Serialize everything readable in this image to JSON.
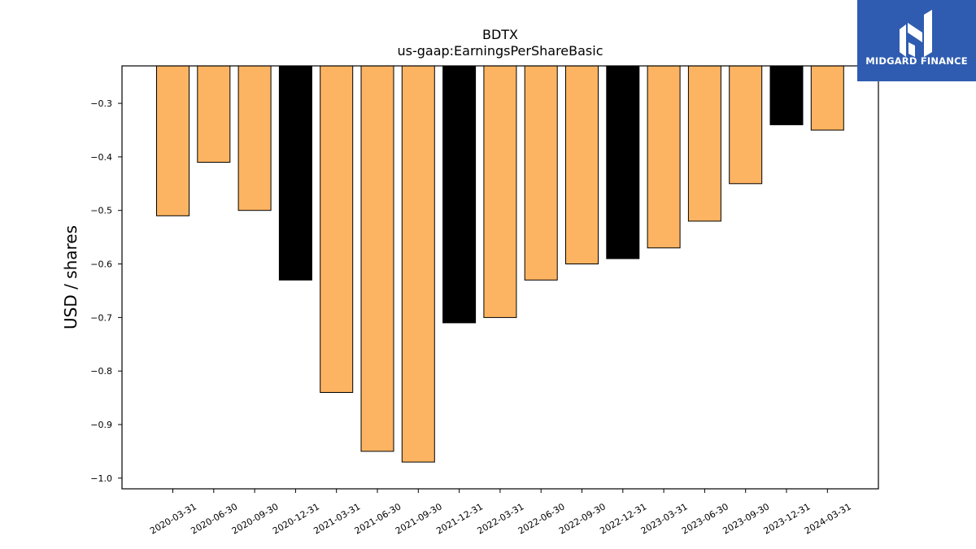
{
  "brand": {
    "name": "MIDGARD FINANCE",
    "logo_icon": "midgard-monogram-icon",
    "background": "#2f5cb0"
  },
  "chart_data": {
    "type": "bar",
    "title": "BDTX",
    "subtitle": "us-gaap:EarningsPerShareBasic",
    "xlabel": "",
    "ylabel": "USD / shares",
    "ylim": [
      -1.02,
      -0.23
    ],
    "yticks": [
      -0.3,
      -0.4,
      -0.5,
      -0.6,
      -0.7,
      -0.8,
      -0.9,
      -1.0
    ],
    "ytick_labels": [
      "−0.3",
      "−0.4",
      "−0.5",
      "−0.6",
      "−0.7",
      "−0.8",
      "−0.9",
      "−1.0"
    ],
    "grid": false,
    "colors": {
      "quarter": "#fdb462",
      "fiscal_year_end": "#000000",
      "edge": "#000000"
    },
    "categories": [
      "2020-03-31",
      "2020-06-30",
      "2020-09-30",
      "2020-12-31",
      "2021-03-31",
      "2021-06-30",
      "2021-09-30",
      "2021-12-31",
      "2022-03-31",
      "2022-06-30",
      "2022-09-30",
      "2022-12-31",
      "2023-03-31",
      "2023-06-30",
      "2023-09-30",
      "2023-12-31",
      "2024-03-31"
    ],
    "values": [
      -0.51,
      -0.41,
      -0.5,
      -0.63,
      -0.84,
      -0.95,
      -0.97,
      -0.71,
      -0.7,
      -0.63,
      -0.6,
      -0.59,
      -0.57,
      -0.52,
      -0.45,
      -0.34,
      -0.35
    ],
    "highlight": [
      false,
      false,
      false,
      true,
      false,
      false,
      false,
      true,
      false,
      false,
      false,
      true,
      false,
      false,
      false,
      true,
      false
    ]
  }
}
